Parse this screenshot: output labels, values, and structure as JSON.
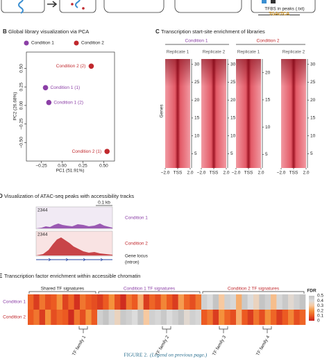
{
  "top": {
    "label": "TFBS in peaks (.txt)"
  },
  "pca": {
    "letter": "B",
    "title": "Global library visualization via PCA",
    "xlabel": "PC1 (51.91%)",
    "ylabel": "PC2 (26.68%)",
    "series": [
      {
        "name": "Condition 1",
        "color": "#8b3fa6",
        "points": [
          {
            "label": "Condition 1 (1)",
            "x": -0.2,
            "y": 0.24
          },
          {
            "label": "Condition 1 (2)",
            "x": -0.16,
            "y": 0.04
          }
        ]
      },
      {
        "name": "Condition 2",
        "color": "#c0282d",
        "points": [
          {
            "label": "Condition 2 (2)",
            "x": 0.35,
            "y": 0.53
          },
          {
            "label": "Condition 2 (1)",
            "x": 0.54,
            "y": -0.62
          }
        ]
      }
    ],
    "xlim": [
      -0.43,
      0.63
    ],
    "ylim": [
      -0.75,
      0.72
    ],
    "xticks": [
      {
        "value": -0.25,
        "label": "−0.25"
      },
      {
        "value": 0,
        "label": "0.00"
      },
      {
        "value": 0.25,
        "label": "0.25"
      },
      {
        "value": 0.5,
        "label": "0.50"
      }
    ],
    "yticks": [
      {
        "value": -0.5,
        "label": "−0.50"
      },
      {
        "value": -0.25,
        "label": "−0.25"
      },
      {
        "value": 0,
        "label": "0.00"
      },
      {
        "value": 0.25,
        "label": "0.25"
      },
      {
        "value": 0.5,
        "label": "0.50"
      }
    ]
  },
  "tss": {
    "letter": "C",
    "title": "Transcription start-site enrichment of libraries",
    "ylabel": "Genes",
    "xlabels": [
      "−2.0",
      "TSS",
      "2.0"
    ],
    "conditions": [
      {
        "label": "Condition 1",
        "color": "#8b3fa6"
      },
      {
        "label": "Condition 2",
        "color": "#c0282d"
      }
    ],
    "heatmaps": [
      {
        "label": "Replicate 1",
        "ylim": [
          1,
          31.5
        ],
        "ticks": [
          5,
          10,
          15,
          20,
          25,
          30
        ]
      },
      {
        "label": "Replicate 2",
        "ylim": [
          1,
          31.5
        ],
        "ticks": [
          5,
          10,
          15,
          20,
          25,
          30
        ]
      },
      {
        "label": "Replicate 1",
        "ylim": [
          2.5,
          22.5
        ],
        "ticks": [
          5,
          10,
          15,
          20
        ]
      },
      {
        "label": "Replicate 2",
        "ylim": [
          1,
          31.5
        ],
        "ticks": [
          5,
          10,
          15,
          20,
          25,
          30
        ]
      }
    ]
  },
  "tracks": {
    "letter": "D",
    "title": "Visualization of ATAC-seq peaks with accessibility tracks",
    "scale": "0.1 kb",
    "tracks": [
      {
        "label": "Condition 1",
        "max": "2344",
        "color": "#8b3fa6"
      },
      {
        "label": "Condition 2",
        "max": "2344",
        "color": "#c0282d"
      }
    ],
    "gene": [
      "Gene locus",
      "(intron)"
    ]
  },
  "tfe": {
    "letter": "E",
    "title": "Transcription factor enrichment within accessible chromatin",
    "groups": [
      {
        "label": "Shared TF signatures",
        "color": "#222"
      },
      {
        "label": "Condition 1 TF signatures",
        "color": "#8b3fa6"
      },
      {
        "label": "Condition 2 TF signatures",
        "color": "#c0282d"
      }
    ],
    "rows": [
      {
        "name": "Condition 1",
        "color": "#8b3fa6",
        "values": [
          0.12,
          0.05,
          0.15,
          0.08,
          0.1,
          0.2,
          0.06,
          0.12,
          0.03,
          0.15,
          0.1,
          0.08,
          0.05,
          0.1,
          0.2,
          0.08,
          0.02,
          0.15,
          0.1,
          0.25,
          0.05,
          0.12,
          0.08,
          0.18,
          0.1,
          0.05,
          0.22,
          0.12,
          0.08,
          0.15,
          0.45,
          0.4,
          0.5,
          0.3,
          0.45,
          0.42,
          0.25,
          0.48,
          0.4,
          0.35,
          0.5,
          0.45,
          0.28,
          0.42,
          0.48,
          0.38,
          0.45,
          0.5
        ]
      },
      {
        "name": "Condition 2",
        "color": "#c0282d",
        "values": [
          0.1,
          0.15,
          0.05,
          0.2,
          0.08,
          0.12,
          0.1,
          0.02,
          0.15,
          0.08,
          0.2,
          0.1,
          0.45,
          0.5,
          0.42,
          0.35,
          0.48,
          0.45,
          0.4,
          0.5,
          0.3,
          0.45,
          0.42,
          0.48,
          0.4,
          0.45,
          0.5,
          0.38,
          0.45,
          0.42,
          0.1,
          0.15,
          0.05,
          0.2,
          0.12,
          0.08,
          0.25,
          0.1,
          0.05,
          0.15,
          0.08,
          0.2,
          0.12,
          0.05,
          0.1,
          0.18,
          0.08,
          0.12
        ]
      }
    ],
    "colorbar": {
      "title": "FDR",
      "ticks": [
        0.5,
        0.4,
        0.3,
        0.2,
        0.1,
        0
      ]
    },
    "families": [
      "TF family 1",
      "TF family 2",
      "TF family 3",
      "TF family 4"
    ]
  },
  "caption": {
    "label": "FIGURE 2.",
    "text": "(Legend on previous page.)"
  }
}
